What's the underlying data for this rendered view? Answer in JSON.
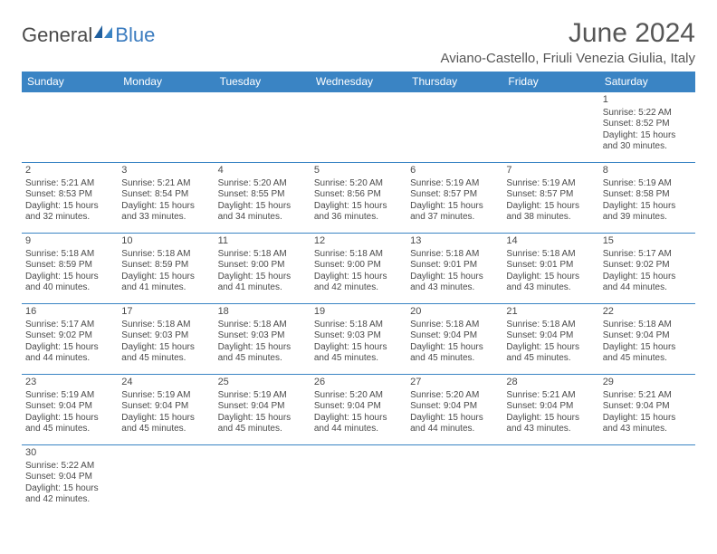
{
  "logo": {
    "text1": "General",
    "text2": "Blue"
  },
  "title": "June 2024",
  "location": "Aviano-Castello, Friuli Venezia Giulia, Italy",
  "colors": {
    "header_bg": "#3a84c4",
    "header_text": "#ffffff",
    "border": "#3a84c4",
    "text": "#4a4a4a",
    "logo_blue": "#3a7bbf"
  },
  "day_headers": [
    "Sunday",
    "Monday",
    "Tuesday",
    "Wednesday",
    "Thursday",
    "Friday",
    "Saturday"
  ],
  "labels": {
    "sunrise_prefix": "Sunrise: ",
    "sunset_prefix": "Sunset: ",
    "daylight_prefix": "Daylight: ",
    "hours_word": " hours",
    "and_word": "and ",
    "minutes_word": " minutes."
  },
  "weeks": [
    [
      null,
      null,
      null,
      null,
      null,
      null,
      {
        "n": 1,
        "sunrise": "5:22 AM",
        "sunset": "8:52 PM",
        "dl_h": 15,
        "dl_m": 30
      }
    ],
    [
      {
        "n": 2,
        "sunrise": "5:21 AM",
        "sunset": "8:53 PM",
        "dl_h": 15,
        "dl_m": 32
      },
      {
        "n": 3,
        "sunrise": "5:21 AM",
        "sunset": "8:54 PM",
        "dl_h": 15,
        "dl_m": 33
      },
      {
        "n": 4,
        "sunrise": "5:20 AM",
        "sunset": "8:55 PM",
        "dl_h": 15,
        "dl_m": 34
      },
      {
        "n": 5,
        "sunrise": "5:20 AM",
        "sunset": "8:56 PM",
        "dl_h": 15,
        "dl_m": 36
      },
      {
        "n": 6,
        "sunrise": "5:19 AM",
        "sunset": "8:57 PM",
        "dl_h": 15,
        "dl_m": 37
      },
      {
        "n": 7,
        "sunrise": "5:19 AM",
        "sunset": "8:57 PM",
        "dl_h": 15,
        "dl_m": 38
      },
      {
        "n": 8,
        "sunrise": "5:19 AM",
        "sunset": "8:58 PM",
        "dl_h": 15,
        "dl_m": 39
      }
    ],
    [
      {
        "n": 9,
        "sunrise": "5:18 AM",
        "sunset": "8:59 PM",
        "dl_h": 15,
        "dl_m": 40
      },
      {
        "n": 10,
        "sunrise": "5:18 AM",
        "sunset": "8:59 PM",
        "dl_h": 15,
        "dl_m": 41
      },
      {
        "n": 11,
        "sunrise": "5:18 AM",
        "sunset": "9:00 PM",
        "dl_h": 15,
        "dl_m": 41
      },
      {
        "n": 12,
        "sunrise": "5:18 AM",
        "sunset": "9:00 PM",
        "dl_h": 15,
        "dl_m": 42
      },
      {
        "n": 13,
        "sunrise": "5:18 AM",
        "sunset": "9:01 PM",
        "dl_h": 15,
        "dl_m": 43
      },
      {
        "n": 14,
        "sunrise": "5:18 AM",
        "sunset": "9:01 PM",
        "dl_h": 15,
        "dl_m": 43
      },
      {
        "n": 15,
        "sunrise": "5:17 AM",
        "sunset": "9:02 PM",
        "dl_h": 15,
        "dl_m": 44
      }
    ],
    [
      {
        "n": 16,
        "sunrise": "5:17 AM",
        "sunset": "9:02 PM",
        "dl_h": 15,
        "dl_m": 44
      },
      {
        "n": 17,
        "sunrise": "5:18 AM",
        "sunset": "9:03 PM",
        "dl_h": 15,
        "dl_m": 45
      },
      {
        "n": 18,
        "sunrise": "5:18 AM",
        "sunset": "9:03 PM",
        "dl_h": 15,
        "dl_m": 45
      },
      {
        "n": 19,
        "sunrise": "5:18 AM",
        "sunset": "9:03 PM",
        "dl_h": 15,
        "dl_m": 45
      },
      {
        "n": 20,
        "sunrise": "5:18 AM",
        "sunset": "9:04 PM",
        "dl_h": 15,
        "dl_m": 45
      },
      {
        "n": 21,
        "sunrise": "5:18 AM",
        "sunset": "9:04 PM",
        "dl_h": 15,
        "dl_m": 45
      },
      {
        "n": 22,
        "sunrise": "5:18 AM",
        "sunset": "9:04 PM",
        "dl_h": 15,
        "dl_m": 45
      }
    ],
    [
      {
        "n": 23,
        "sunrise": "5:19 AM",
        "sunset": "9:04 PM",
        "dl_h": 15,
        "dl_m": 45
      },
      {
        "n": 24,
        "sunrise": "5:19 AM",
        "sunset": "9:04 PM",
        "dl_h": 15,
        "dl_m": 45
      },
      {
        "n": 25,
        "sunrise": "5:19 AM",
        "sunset": "9:04 PM",
        "dl_h": 15,
        "dl_m": 45
      },
      {
        "n": 26,
        "sunrise": "5:20 AM",
        "sunset": "9:04 PM",
        "dl_h": 15,
        "dl_m": 44
      },
      {
        "n": 27,
        "sunrise": "5:20 AM",
        "sunset": "9:04 PM",
        "dl_h": 15,
        "dl_m": 44
      },
      {
        "n": 28,
        "sunrise": "5:21 AM",
        "sunset": "9:04 PM",
        "dl_h": 15,
        "dl_m": 43
      },
      {
        "n": 29,
        "sunrise": "5:21 AM",
        "sunset": "9:04 PM",
        "dl_h": 15,
        "dl_m": 43
      }
    ],
    [
      {
        "n": 30,
        "sunrise": "5:22 AM",
        "sunset": "9:04 PM",
        "dl_h": 15,
        "dl_m": 42
      },
      null,
      null,
      null,
      null,
      null,
      null
    ]
  ]
}
